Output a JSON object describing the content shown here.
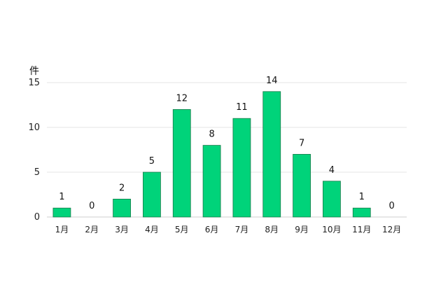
{
  "chart_data": {
    "type": "bar",
    "unit_label": "件",
    "categories": [
      "1月",
      "2月",
      "3月",
      "4月",
      "5月",
      "6月",
      "7月",
      "8月",
      "9月",
      "10月",
      "11月",
      "12月"
    ],
    "values": [
      1,
      0,
      2,
      5,
      12,
      8,
      11,
      14,
      7,
      4,
      1,
      0
    ],
    "ylim": [
      0,
      15
    ],
    "yticks": [
      0,
      5,
      10,
      15
    ],
    "grid": true,
    "legend": "none",
    "colors": {
      "bar": "#00d37a",
      "bar_edge": "#1a7a4a",
      "grid": "#e6e6e6",
      "axis": "#cfcfcf"
    }
  }
}
